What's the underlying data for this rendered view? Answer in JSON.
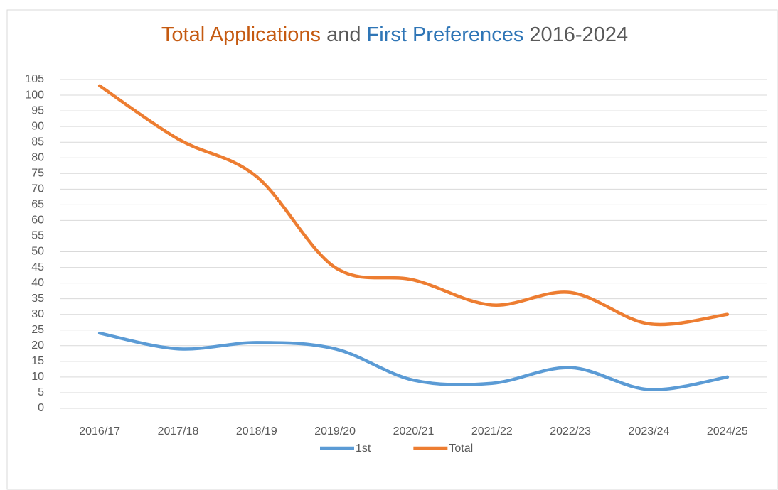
{
  "chart_data": {
    "type": "line",
    "title": [
      "Total Applications",
      "and",
      "First Preferences",
      "2016-2024"
    ],
    "title_colors": [
      "#c55a11",
      "#595959",
      "#2e75b6",
      "#595959"
    ],
    "categories": [
      "2016/17",
      "2017/18",
      "2018/19",
      "2019/20",
      "2020/21",
      "2021/22",
      "2022/23",
      "2023/24",
      "2024/25"
    ],
    "series": [
      {
        "name": "1st",
        "color": "#5b9bd5",
        "values": [
          24,
          19,
          21,
          19,
          9,
          8,
          13,
          6,
          10
        ]
      },
      {
        "name": "Total",
        "color": "#ed7d31",
        "values": [
          103,
          86,
          74,
          45,
          41,
          33,
          37,
          27,
          30
        ]
      }
    ],
    "ylim": [
      0,
      105
    ],
    "yticks": [
      0,
      5,
      10,
      15,
      20,
      25,
      30,
      35,
      40,
      45,
      50,
      55,
      60,
      65,
      70,
      75,
      80,
      85,
      90,
      95,
      100,
      105
    ],
    "grid": true,
    "smooth": true,
    "legend": "bottom"
  }
}
